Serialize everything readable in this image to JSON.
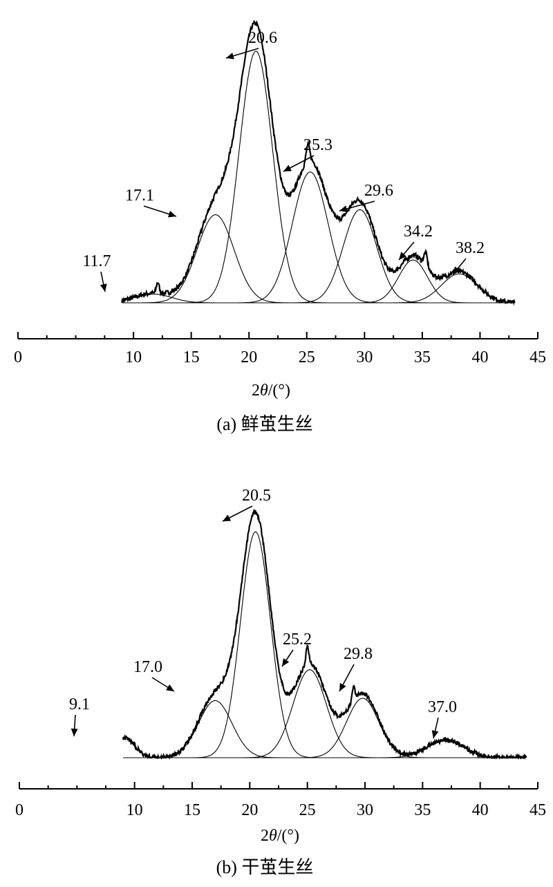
{
  "chart_data": [
    {
      "type": "line",
      "caption": "(a) 鲜茧生丝",
      "xlabel_prefix": "2",
      "xlabel_symbol": "θ",
      "xlabel_unit": "/(°)",
      "xlim": [
        0,
        45
      ],
      "xticks": [
        0,
        10,
        15,
        20,
        25,
        30,
        35,
        40,
        45
      ],
      "x_range": [
        9,
        43
      ],
      "peaks": [
        {
          "label": "11.7",
          "center": 11.7,
          "height": 0.035,
          "width": 1.6
        },
        {
          "label": "17.1",
          "center": 17.1,
          "height": 0.35,
          "width": 1.6
        },
        {
          "label": "20.6",
          "center": 20.6,
          "height": 1.0,
          "width": 1.45
        },
        {
          "label": "25.3",
          "center": 25.3,
          "height": 0.52,
          "width": 1.55
        },
        {
          "label": "29.6",
          "center": 29.6,
          "height": 0.37,
          "width": 1.45
        },
        {
          "label": "34.2",
          "center": 34.2,
          "height": 0.17,
          "width": 1.25
        },
        {
          "label": "38.2",
          "center": 38.2,
          "height": 0.115,
          "width": 1.55
        }
      ],
      "sharp_peaks": [
        {
          "center": 12.1,
          "height": 0.04,
          "width": 0.12
        },
        {
          "center": 25.1,
          "height": 0.06,
          "width": 0.15
        },
        {
          "center": 35.3,
          "height": 0.05,
          "width": 0.15
        }
      ]
    },
    {
      "type": "line",
      "caption": "(b) 干茧生丝",
      "xlabel_prefix": "2",
      "xlabel_symbol": "θ",
      "xlabel_unit": "/(°)",
      "xlim": [
        0,
        45
      ],
      "xticks": [
        0,
        10,
        15,
        20,
        25,
        30,
        35,
        40,
        45
      ],
      "x_range": [
        9,
        44
      ],
      "peaks": [
        {
          "label": "9.1",
          "center": 9.1,
          "height": 0.08,
          "width": 0.9
        },
        {
          "label": "17.0",
          "center": 17.0,
          "height": 0.24,
          "width": 1.45
        },
        {
          "label": "20.5",
          "center": 20.5,
          "height": 0.95,
          "width": 1.3
        },
        {
          "label": "25.2",
          "center": 25.2,
          "height": 0.37,
          "width": 1.45
        },
        {
          "label": "29.8",
          "center": 29.8,
          "height": 0.25,
          "width": 1.4
        },
        {
          "label": "37.0",
          "center": 37.0,
          "height": 0.07,
          "width": 1.6
        }
      ],
      "sharp_peaks": [
        {
          "center": 25.0,
          "height": 0.07,
          "width": 0.12
        },
        {
          "center": 29.0,
          "height": 0.06,
          "width": 0.12
        }
      ]
    }
  ]
}
